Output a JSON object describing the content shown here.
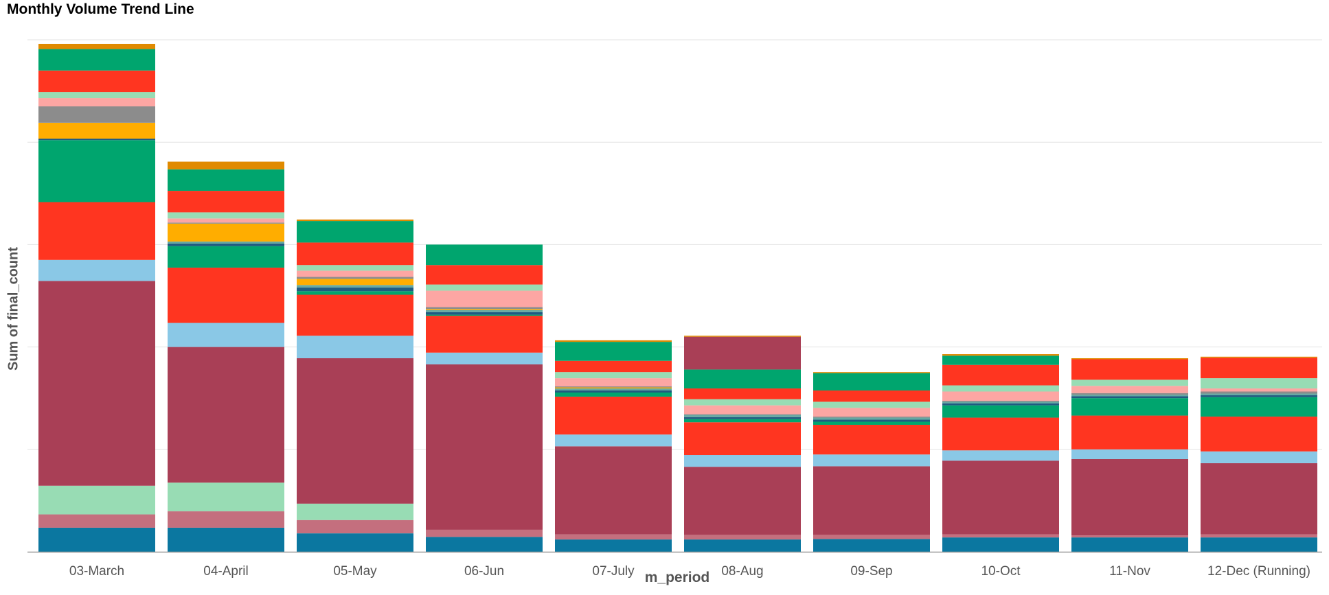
{
  "chart_data": {
    "type": "bar",
    "stacked": true,
    "title": "Monthly Volume Trend Line",
    "xlabel": "m_period",
    "ylabel": "Sum of final_count",
    "ylim": [
      0,
      5
    ],
    "grid": true,
    "categories": [
      "03-March",
      "04-April",
      "05-May",
      "06-Jun",
      "07-July",
      "08-Aug",
      "09-Sep",
      "10-Oct",
      "11-Nov",
      "12-Dec (Running)"
    ],
    "colors": [
      "#0b77a0",
      "#c46f7e",
      "#98dcb4",
      "#a93f56",
      "#8ac8e6",
      "#ff3520",
      "#00a56e",
      "#fda6a3",
      "#8c8c8c",
      "#205b80",
      "#ffad00",
      "#66a9a2",
      "#e08a00"
    ],
    "series": [
      {
        "color": "#0b77a0",
        "values": [
          0.235,
          0.235,
          0.18,
          0.145,
          0.12,
          0.12,
          0.125,
          0.14,
          0.14,
          0.14
        ]
      },
      {
        "color": "#c46f7e",
        "values": [
          0.13,
          0.16,
          0.13,
          0.07,
          0.05,
          0.045,
          0.04,
          0.03,
          0.02,
          0.03
        ]
      },
      {
        "color": "#98dcb4",
        "values": [
          0.28,
          0.28,
          0.16,
          0,
          0,
          0,
          0,
          0,
          0,
          0
        ]
      },
      {
        "color": "#a93f56",
        "values": [
          2.0,
          1.325,
          1.42,
          1.615,
          0.86,
          0.665,
          0.67,
          0.72,
          0.745,
          0.695
        ]
      },
      {
        "color": "#8ac8e6",
        "values": [
          0.205,
          0.235,
          0.22,
          0.115,
          0.115,
          0.115,
          0.115,
          0.1,
          0.095,
          0.115
        ]
      },
      {
        "color": "#ff3520",
        "values": [
          0.565,
          0.54,
          0.4,
          0.36,
          0.37,
          0.32,
          0.29,
          0.32,
          0.33,
          0.34
        ]
      },
      {
        "color": "#00a56e",
        "values": [
          0.605,
          0.21,
          0.035,
          0.01,
          0.04,
          0.03,
          0.03,
          0.12,
          0.17,
          0.19
        ]
      },
      {
        "color": "#205b80",
        "values": [
          0.015,
          0.025,
          0.035,
          0.025,
          0.02,
          0.02,
          0.02,
          0.02,
          0.02,
          0.02
        ]
      },
      {
        "color": "#66a9a2",
        "values": [
          0,
          0.02,
          0.025,
          0.02,
          0.02,
          0.02,
          0.02,
          0.015,
          0.015,
          0.015
        ]
      },
      {
        "color": "#ffad00",
        "values": [
          0.155,
          0.175,
          0.06,
          0.01,
          0.01,
          0,
          0,
          0,
          0,
          0
        ]
      },
      {
        "color": "#8c8c8c",
        "values": [
          0.16,
          0.01,
          0.02,
          0.02,
          0.01,
          0.01,
          0.01,
          0.01,
          0.015,
          0.02
        ]
      },
      {
        "color": "#fda6a3",
        "values": [
          0.08,
          0.04,
          0.06,
          0.16,
          0.08,
          0.085,
          0.085,
          0.09,
          0.07,
          0.03
        ]
      },
      {
        "color": "#98dcb4",
        "values": [
          0.06,
          0.06,
          0.055,
          0.06,
          0.06,
          0.06,
          0.06,
          0.06,
          0.06,
          0.1
        ]
      },
      {
        "color": "#ff3520",
        "values": [
          0.21,
          0.21,
          0.22,
          0.19,
          0.11,
          0.105,
          0.11,
          0.2,
          0.2,
          0.2
        ]
      },
      {
        "color": "#00a56e",
        "values": [
          0.21,
          0.21,
          0.21,
          0.2,
          0.185,
          0.185,
          0.17,
          0.09,
          0,
          0
        ]
      },
      {
        "color": "#a93f56",
        "values": [
          0,
          0,
          0,
          0,
          0,
          0.32,
          0,
          0,
          0,
          0
        ]
      },
      {
        "color": "#e08a00",
        "values": [
          0.05,
          0.075,
          0.015,
          0,
          0.015,
          0.01,
          0.01,
          0.015,
          0.01,
          0.01
        ]
      }
    ]
  }
}
